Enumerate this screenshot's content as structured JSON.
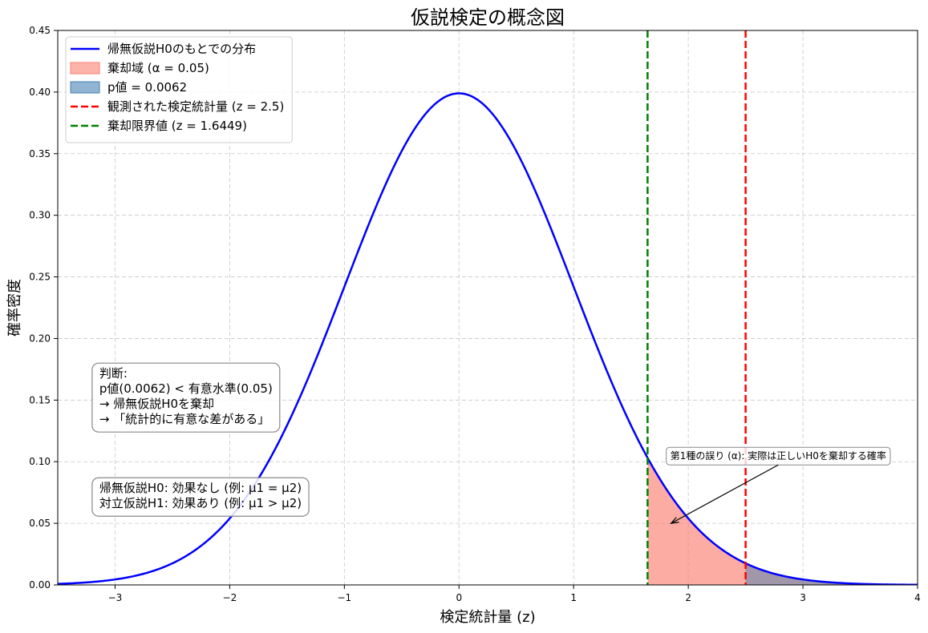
{
  "chart_data": {
    "type": "line",
    "title": "仮説検定の概念図",
    "xlabel": "検定統計量 (z)",
    "ylabel": "確率密度",
    "xlim": [
      -3.5,
      4
    ],
    "ylim": [
      0,
      0.45
    ],
    "x_ticks": [
      -3,
      -2,
      -1,
      0,
      1,
      2,
      3,
      4
    ],
    "x_tick_labels": [
      "−3",
      "−2",
      "−1",
      "0",
      "1",
      "2",
      "3",
      "4"
    ],
    "y_ticks": [
      0.0,
      0.05,
      0.1,
      0.15,
      0.2,
      0.25,
      0.3,
      0.35,
      0.4,
      0.45
    ],
    "y_tick_labels": [
      "0.00",
      "0.05",
      "0.10",
      "0.15",
      "0.20",
      "0.25",
      "0.30",
      "0.35",
      "0.40",
      "0.45"
    ],
    "grid": true,
    "legend_position": "upper-left",
    "series": [
      {
        "name": "帰無仮説H0のもとでの分布",
        "kind": "normal_pdf",
        "mean": 0,
        "sd": 1,
        "color": "#0000ff"
      }
    ],
    "regions": [
      {
        "name": "棄却域 (α = 0.05)",
        "from": 1.6449,
        "to": 4,
        "color": "#fa8072",
        "opacity": 0.65
      },
      {
        "name": "p値 = 0.0062",
        "from": 2.5,
        "to": 4,
        "color": "#4682b4",
        "opacity": 0.5
      }
    ],
    "vlines": [
      {
        "name": "観測された検定統計量 (z = 2.5)",
        "x": 2.5,
        "color": "#ff0000"
      },
      {
        "name": "棄却限界値 (z = 1.6449)",
        "x": 1.6449,
        "color": "#008000"
      }
    ],
    "legend": [
      {
        "label": "帰無仮説H0のもとでの分布",
        "kind": "line",
        "color": "#0000ff"
      },
      {
        "label": "棄却域 (α = 0.05)",
        "kind": "patch",
        "color": "#fa8072"
      },
      {
        "label": "p値 = 0.0062",
        "kind": "patch",
        "color": "#4682b4"
      },
      {
        "label": "観測された検定統計量 (z = 2.5)",
        "kind": "dashed",
        "color": "#ff0000"
      },
      {
        "label": "棄却限界値 (z = 1.6449)",
        "kind": "dashed",
        "color": "#008000"
      }
    ],
    "judgment_box": {
      "lines": [
        "判断:",
        "p値(0.0062) < 有意水準(0.05)",
        "→ 帰無仮説H0を棄却",
        "→ 「統計的に有意な差がある」"
      ],
      "x": -3.2,
      "y": 0.18
    },
    "hypothesis_box": {
      "lines": [
        "帰無仮説H0: 効果なし (例: μ1 = μ2)",
        "対立仮説H1: 効果あり (例: μ1 > μ2)"
      ],
      "x": -3.2,
      "y": 0.087
    },
    "annotation": {
      "text": "第1種の誤り (α): 実際は正しいH0を棄却する確率",
      "text_x": 1.85,
      "text_y": 0.1,
      "arrow_to_x": 1.85,
      "arrow_to_y": 0.05
    }
  }
}
